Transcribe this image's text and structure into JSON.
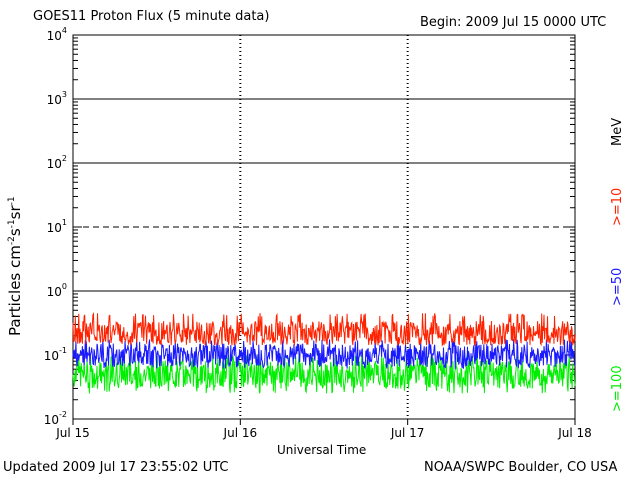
{
  "title": "GOES11 Proton Flux (5 minute data)",
  "begin": "Begin: 2009 Jul 15 0000 UTC",
  "updated": "Updated 2009 Jul 17 23:55:02 UTC",
  "credit": "NOAA/SWPC Boulder, CO USA",
  "chart_data": {
    "type": "line",
    "title": "GOES11 Proton Flux (5 minute data)",
    "xlabel": "Universal Time",
    "ylabel": "Particles cm-2s-1sr-1",
    "yscale": "log",
    "ylim": [
      0.01,
      10000
    ],
    "x_ticks": [
      "Jul 15",
      "Jul 16",
      "Jul 17",
      "Jul 18"
    ],
    "xlim": [
      "2009-07-15 00:00",
      "2009-07-18 00:00"
    ],
    "y_ticks": [
      {
        "base": "10",
        "exp": "-2",
        "value": 0.01
      },
      {
        "base": "10",
        "exp": "-1",
        "value": 0.1
      },
      {
        "base": "10",
        "exp": "0",
        "value": 1
      },
      {
        "base": "10",
        "exp": "1",
        "value": 10
      },
      {
        "base": "10",
        "exp": "2",
        "value": 100
      },
      {
        "base": "10",
        "exp": "3",
        "value": 1000
      },
      {
        "base": "10",
        "exp": "4",
        "value": 10000
      }
    ],
    "reference_lines": [
      {
        "value": 10,
        "style": "dashed"
      },
      {
        "value": 1,
        "style": "solid"
      },
      {
        "value": 100,
        "style": "solid"
      },
      {
        "value": 1000,
        "style": "solid"
      }
    ],
    "legend_unit": "MeV",
    "legend_placement": "right, vertical",
    "series": [
      {
        "name": ">=10",
        "color": "#ff2200",
        "typical": 0.22,
        "range": [
          0.14,
          0.45
        ]
      },
      {
        "name": ">=50",
        "color": "#1a1aff",
        "typical": 0.1,
        "range": [
          0.06,
          0.18
        ]
      },
      {
        "name": ">=100",
        "color": "#00ee00",
        "typical": 0.05,
        "range": [
          0.025,
          0.1
        ]
      }
    ]
  }
}
